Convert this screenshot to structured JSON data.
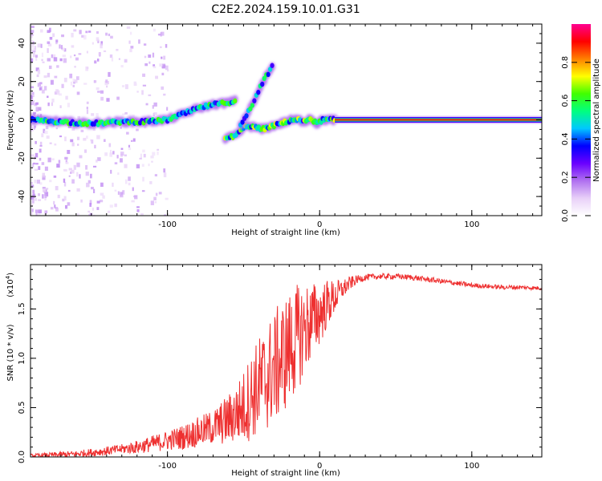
{
  "title": "C2E2.2024.159.10.01.G31",
  "chart_data": [
    {
      "type": "heatmap",
      "name": "spectrogram",
      "xlabel": "Height of straight line (km)",
      "ylabel": "Frequency (Hz)",
      "xlim": [
        -190,
        146
      ],
      "ylim": [
        -50,
        50
      ],
      "xticks": [
        -100,
        0,
        100
      ],
      "yticks": [
        -40,
        -20,
        0,
        20,
        40
      ],
      "colorbar": {
        "label": "Normalized spectral amplitude",
        "range": [
          0,
          1
        ],
        "ticks": [
          0.0,
          0.2,
          0.4,
          0.6,
          0.8
        ],
        "tick_labels": [
          "0.0",
          "0.2",
          "0.4",
          "0.6",
          "0.8"
        ],
        "colormap": [
          "#ffffff",
          "#e8d0f8",
          "#b070f0",
          "#6a00ff",
          "#0000ff",
          "#00c8ff",
          "#00ff80",
          "#40ff00",
          "#ffff00",
          "#ff8000",
          "#ff0000",
          "#ff0090"
        ]
      },
      "main_trace": {
        "x": [
          -190,
          -170,
          -150,
          -130,
          -115,
          -100,
          -90,
          -80,
          -70,
          -60,
          -55
        ],
        "freq": [
          0,
          -1,
          -2,
          -1,
          -1,
          0,
          3,
          6,
          8,
          9,
          10
        ]
      },
      "secondary_trace": {
        "x": [
          -62,
          -55,
          -48,
          -42,
          -38,
          -34,
          -30,
          -26,
          -22,
          -18,
          -14,
          -10,
          -6,
          -2,
          2,
          6,
          10
        ],
        "freq": [
          -10,
          -8,
          -3,
          -4,
          -5,
          -4,
          -3,
          -2,
          -1,
          0,
          0,
          -1,
          1,
          -2,
          0,
          0,
          0
        ]
      },
      "branch_trace": {
        "x": [
          -52,
          -47,
          -43,
          -39,
          -35,
          -31
        ],
        "freq": [
          -3,
          4,
          10,
          17,
          23,
          28
        ]
      },
      "steady_line": {
        "x_start": 10,
        "x_end": 146,
        "freq": 0
      }
    },
    {
      "type": "line",
      "name": "snr",
      "xlabel": "Height of straight line (km)",
      "ylabel": "SNR (10 * v/v)",
      "scale_label": "(x10",
      "scale_exponent": "4",
      "scale_close": ")",
      "xlim": [
        -190,
        146
      ],
      "ylim": [
        0,
        1.95
      ],
      "xticks": [
        -100,
        0,
        100
      ],
      "yticks": [
        0.0,
        0.5,
        1.0,
        1.5
      ],
      "ytick_labels": [
        "0.0",
        "0.5",
        "1.0",
        "1.5"
      ],
      "color": "#ee3030",
      "trend": {
        "x": [
          -190,
          -160,
          -140,
          -120,
          -105,
          -90,
          -80,
          -70,
          -60,
          -50,
          -45,
          -40,
          -35,
          -30,
          -25,
          -20,
          -15,
          -10,
          -5,
          0,
          5,
          10,
          15,
          20,
          25,
          30,
          40,
          50,
          60,
          70,
          80,
          90,
          100,
          110,
          120,
          130,
          146
        ],
        "y": [
          0.01,
          0.03,
          0.06,
          0.1,
          0.15,
          0.2,
          0.25,
          0.3,
          0.38,
          0.5,
          0.62,
          0.72,
          0.8,
          0.9,
          1.0,
          1.1,
          1.2,
          1.3,
          1.38,
          1.45,
          1.55,
          1.62,
          1.7,
          1.76,
          1.8,
          1.82,
          1.83,
          1.83,
          1.82,
          1.8,
          1.78,
          1.76,
          1.74,
          1.73,
          1.72,
          1.72,
          1.71
        ]
      },
      "noise_amplitude": {
        "x": [
          -190,
          -130,
          -100,
          -70,
          -55,
          -45,
          -35,
          -25,
          -15,
          -5,
          5,
          15,
          25,
          35,
          146
        ],
        "amp": [
          0.02,
          0.05,
          0.1,
          0.18,
          0.3,
          0.45,
          0.55,
          0.6,
          0.55,
          0.4,
          0.25,
          0.1,
          0.04,
          0.03,
          0.02
        ]
      }
    }
  ]
}
